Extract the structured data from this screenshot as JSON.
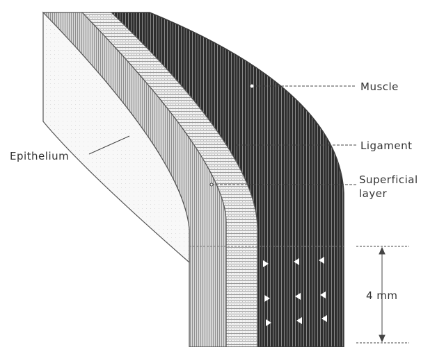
{
  "labels": {
    "muscle": "Muscle",
    "ligament": "Ligament",
    "superficial_line1": "Superficial",
    "superficial_line2": "layer",
    "epithelium": "Epithelium",
    "thickness": "4 mm"
  },
  "colors": {
    "background": "#ffffff",
    "muscle": "#3a3a3a",
    "ligament": "#e6e6e6",
    "superficial": "#bdbdbd",
    "epithelium": "#f7f7f7",
    "outline": "#555555",
    "leader": "#444444",
    "text": "#333333"
  }
}
